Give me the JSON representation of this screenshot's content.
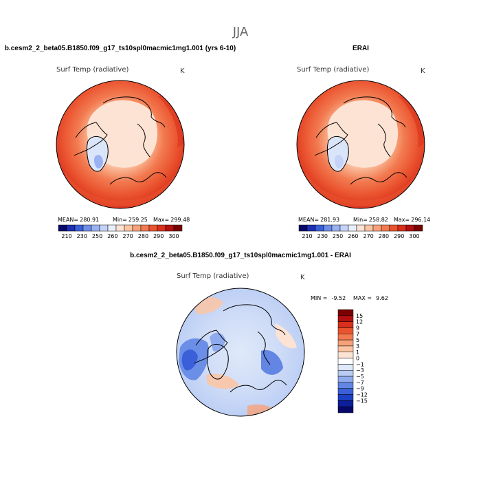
{
  "page_title": "JJA",
  "chart_data": [
    {
      "type": "heatmap",
      "panel": "left",
      "title": "b.cesm2_2_beta05.B1850.f09_g17_ts10spl0macmic1mg1.001 (yrs 6-10)",
      "variable": "Surf Temp (radiative)",
      "units": "K",
      "stats": {
        "mean_label": "MEAN=",
        "mean": "280.91",
        "min_label": "Min=",
        "min": "259.25",
        "max_label": "Max=",
        "max": "299.48"
      },
      "colorbar_ticks": [
        "210",
        "230",
        "250",
        "260",
        "270",
        "280",
        "290",
        "300"
      ]
    },
    {
      "type": "heatmap",
      "panel": "right",
      "title": "ERAI",
      "variable": "Surf Temp (radiative)",
      "units": "K",
      "stats": {
        "mean_label": "MEAN=",
        "mean": "281.93",
        "min_label": "Min=",
        "min": "258.82",
        "max_label": "Max=",
        "max": "296.14"
      },
      "colorbar_ticks": [
        "210",
        "230",
        "250",
        "260",
        "270",
        "280",
        "290",
        "300"
      ]
    },
    {
      "type": "heatmap",
      "panel": "difference",
      "title": "b.cesm2_2_beta05.B1850.f09_g17_ts10spl0macmic1mg1.001 - ERAI",
      "variable": "Surf Temp (radiative)",
      "units": "K",
      "stats": {
        "min_label": "MIN =",
        "min": "-9.52",
        "max_label": "MAX =",
        "max": "9.62"
      },
      "colorbar_ticks": [
        "15",
        "12",
        "9",
        "7",
        "5",
        "3",
        "1",
        "0",
        "−1",
        "−3",
        "−5",
        "−7",
        "−9",
        "−12",
        "−15"
      ]
    }
  ],
  "colors": {
    "abs_scale": [
      "#08086b",
      "#1d2fb4",
      "#3a5fd8",
      "#6d8de9",
      "#9ab2f1",
      "#c4d3f7",
      "#eaf0fb",
      "#fde3d3",
      "#fbc5a4",
      "#f7a27a",
      "#f27a50",
      "#ea532f",
      "#d8301c",
      "#b21010",
      "#7a0000"
    ],
    "diff_scale": [
      "#7a0000",
      "#b21010",
      "#d8301c",
      "#ea532f",
      "#f27a50",
      "#f7a27a",
      "#fbc5a4",
      "#fde3d3",
      "#ffffff",
      "#dfe9fa",
      "#b8ccf4",
      "#8fabee",
      "#6385e4",
      "#3a5fd8",
      "#1d3fc3",
      "#0c1f99",
      "#08086b"
    ],
    "land_cold": "#f9c9ae",
    "greenland": "#dbe5fa",
    "ocean_warm": "#ef6b45",
    "diff_background": "#cfdcf7",
    "diff_land": "#6b8fe6",
    "coastline": "#000000"
  }
}
